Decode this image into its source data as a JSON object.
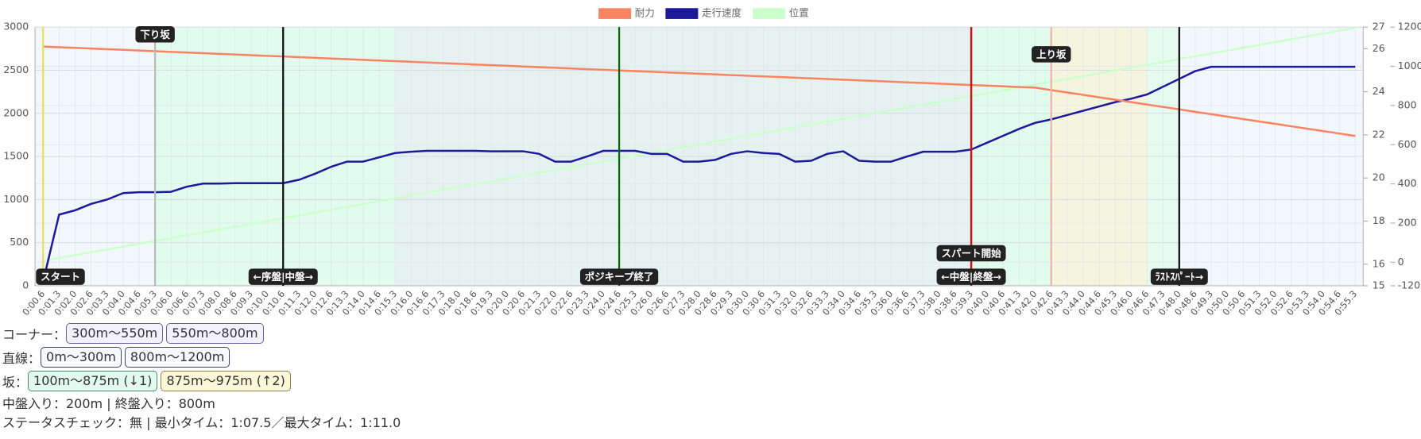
{
  "chart_data": {
    "type": "line",
    "legend": "top",
    "grid": true,
    "plot_background": "#f2f7fc",
    "categories": [
      "0:00.6",
      "0:01.3",
      "0:02.0",
      "0:02.6",
      "0:03.3",
      "0:04.0",
      "0:04.6",
      "0:05.3",
      "0:06.0",
      "0:06.6",
      "0:07.3",
      "0:08.0",
      "0:08.6",
      "0:09.3",
      "0:10.0",
      "0:10.6",
      "0:11.3",
      "0:12.0",
      "0:12.6",
      "0:13.3",
      "0:14.0",
      "0:14.6",
      "0:15.3",
      "0:16.0",
      "0:16.6",
      "0:17.3",
      "0:18.0",
      "0:18.6",
      "0:19.3",
      "0:20.0",
      "0:20.6",
      "0:21.3",
      "0:22.0",
      "0:22.6",
      "0:23.3",
      "0:24.0",
      "0:24.6",
      "0:25.3",
      "0:26.0",
      "0:26.6",
      "0:27.3",
      "0:28.0",
      "0:28.6",
      "0:29.3",
      "0:30.0",
      "0:30.6",
      "0:31.3",
      "0:32.0",
      "0:32.6",
      "0:33.3",
      "0:34.0",
      "0:34.6",
      "0:35.3",
      "0:36.0",
      "0:36.6",
      "0:37.3",
      "0:38.0",
      "0:38.6",
      "0:39.3",
      "0:40.0",
      "0:40.6",
      "0:41.3",
      "0:42.0",
      "0:42.6",
      "0:43.3",
      "0:44.0",
      "0:44.6",
      "0:45.3",
      "0:46.0",
      "0:46.6",
      "0:47.3",
      "0:48.0",
      "0:48.6",
      "0:49.3",
      "0:50.0",
      "0:50.6",
      "0:51.3",
      "0:52.0",
      "0:52.6",
      "0:53.3",
      "0:54.0",
      "0:54.6",
      "0:55.3"
    ],
    "ylim": [
      0,
      3000
    ],
    "yticks": [
      0,
      500,
      1000,
      1500,
      2000,
      2500,
      3000
    ],
    "y2lim": [
      15,
      27
    ],
    "y2ticks": [
      15,
      16,
      18,
      20,
      22,
      24,
      26,
      27
    ],
    "y3lim": [
      -120,
      1200
    ],
    "y3ticks": [
      -120,
      0,
      200,
      400,
      600,
      800,
      1000,
      1200
    ],
    "series": [
      {
        "name": "耐力",
        "color": "#fa8462",
        "axis": "y",
        "values": [
          2775,
          2767,
          2760,
          2752,
          2744,
          2737,
          2729,
          2721,
          2713,
          2706,
          2698,
          2690,
          2683,
          2675,
          2667,
          2660,
          2652,
          2644,
          2636,
          2629,
          2621,
          2613,
          2606,
          2598,
          2590,
          2583,
          2575,
          2567,
          2559,
          2552,
          2544,
          2536,
          2529,
          2521,
          2513,
          2506,
          2498,
          2490,
          2482,
          2475,
          2467,
          2459,
          2452,
          2444,
          2436,
          2429,
          2421,
          2413,
          2405,
          2398,
          2390,
          2382,
          2375,
          2367,
          2359,
          2352,
          2344,
          2336,
          2328,
          2321,
          2313,
          2305,
          2298,
          2270,
          2242,
          2214,
          2186,
          2158,
          2130,
          2102,
          2074,
          2046,
          2018,
          1990,
          1962,
          1934,
          1906,
          1878,
          1850,
          1822,
          1794,
          1766,
          1738
        ]
      },
      {
        "name": "走行速度",
        "color": "#1c1a9b",
        "axis": "y2",
        "values": [
          15.2,
          18.3,
          18.5,
          18.8,
          19.0,
          19.3,
          19.34,
          19.34,
          19.36,
          19.6,
          19.74,
          19.74,
          19.76,
          19.76,
          19.76,
          19.76,
          19.92,
          20.2,
          20.52,
          20.76,
          20.76,
          20.96,
          21.16,
          21.22,
          21.26,
          21.26,
          21.26,
          21.26,
          21.24,
          21.24,
          21.24,
          21.12,
          20.76,
          20.76,
          21.0,
          21.26,
          21.26,
          21.26,
          21.12,
          21.12,
          20.76,
          20.76,
          20.84,
          21.12,
          21.24,
          21.16,
          21.12,
          20.76,
          20.8,
          21.12,
          21.24,
          20.8,
          20.76,
          20.76,
          21.0,
          21.22,
          21.22,
          21.22,
          21.32,
          21.64,
          21.96,
          22.28,
          22.56,
          22.72,
          22.92,
          23.12,
          23.32,
          23.52,
          23.68,
          23.88,
          24.24,
          24.6,
          24.96,
          25.16,
          25.16,
          25.16,
          25.16,
          25.16,
          25.16,
          25.16,
          25.16,
          25.16,
          25.16
        ]
      },
      {
        "name": "位置",
        "color": "#ccffcc",
        "axis": "y3",
        "values": [
          7,
          22,
          36,
          51,
          65,
          80,
          94,
          109,
          123,
          138,
          152,
          167,
          181,
          196,
          210,
          225,
          239,
          254,
          268,
          283,
          297,
          312,
          326,
          341,
          355,
          370,
          384,
          399,
          413,
          428,
          442,
          457,
          471,
          486,
          500,
          515,
          529,
          544,
          558,
          573,
          587,
          602,
          616,
          631,
          645,
          660,
          674,
          689,
          703,
          718,
          732,
          747,
          761,
          776,
          790,
          805,
          819,
          834,
          848,
          863,
          877,
          892,
          906,
          921,
          935,
          950,
          964,
          979,
          993,
          1008,
          1022,
          1037,
          1051,
          1066,
          1080,
          1095,
          1109,
          1124,
          1138,
          1153,
          1167,
          1182,
          1196
        ]
      }
    ],
    "regions": [
      {
        "from": "0:05.3",
        "to": "0:15.3",
        "color": "#e2fbef"
      },
      {
        "from": "0:15.3",
        "to": "0:39.3",
        "color": "#e5f2f1"
      },
      {
        "from": "0:39.3",
        "to": "0:42.6",
        "color": "#e2fbef"
      },
      {
        "from": "0:42.6",
        "to": "0:46.6",
        "color": "#f5f5df"
      },
      {
        "from": "0:46.6",
        "to": "0:48.0",
        "color": "#e6fbf0"
      }
    ],
    "markers": [
      {
        "label": "スタート",
        "at": "0:00.6",
        "color": "#e8df5a",
        "label_pos": "bottom"
      },
      {
        "label": "下り坂",
        "at": "0:05.3",
        "color": "#bbbbbb",
        "label_pos": "top"
      },
      {
        "label": "←序盤|中盤→",
        "at": "0:10.6",
        "color": "#111111",
        "label_pos": "bottom"
      },
      {
        "label": "ポジキープ終了",
        "at": "0:24.6",
        "color": "#0a6a0a",
        "label_pos": "bottom"
      },
      {
        "label": "←中盤|終盤→",
        "at": "0:39.3",
        "color": "#cc1111",
        "label_pos": "bottom"
      },
      {
        "label": "スパート開始",
        "at": "0:39.3",
        "color": "#cc1111",
        "label_pos": "bottom"
      },
      {
        "label": "上り坂",
        "at": "0:42.6",
        "color": "#f3b4a4",
        "label_pos": "top"
      },
      {
        "label": "ﾗｽﾄｽﾊﾟｰﾄ→",
        "at": "0:48.0",
        "color": "#111111",
        "label_pos": "bottom"
      }
    ]
  },
  "info": {
    "corner": {
      "label": "コーナー：",
      "items": [
        "300m〜550m",
        "550m〜800m"
      ]
    },
    "straight": {
      "label": "直線：",
      "items": [
        "0m〜300m",
        "800m〜1200m"
      ]
    },
    "slope": {
      "label": "坂：",
      "items": [
        "100m〜875m (↓1)",
        "875m〜975m (↑2)"
      ]
    },
    "phase": "中盤入り：200m | 終盤入り：800m",
    "status": "ステータスチェック：無 | 最小タイム：1:07.5／最大タイム：1:11.0"
  }
}
